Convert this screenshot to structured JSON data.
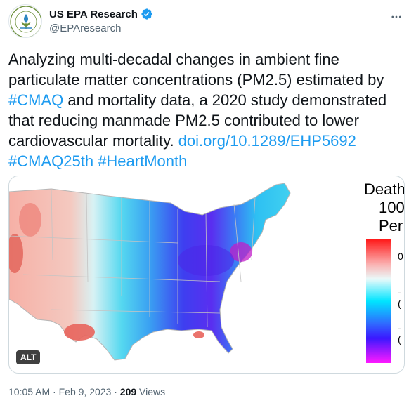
{
  "author": {
    "display_name": "US EPA Research",
    "handle": "@EPAresearch",
    "verified": true,
    "avatar_icon": "epa-seal-icon"
  },
  "tweet": {
    "text_part1": "Analyzing multi-decadal changes in ambient fine particulate matter concentrations (PM2.5) estimated by ",
    "hashtag_cmaq": "#CMAQ",
    "text_part2": " and mortality data, a 2020 study demonstrated that reducing manmade PM2.5 contributed to lower cardiovascular mortality.",
    "link_doi": "doi.org/10.1289/EHP5692",
    "hashtag_cmaq25": "#CMAQ25th",
    "hashtag_heart": "#HeartMonth"
  },
  "media": {
    "alt_badge": "ALT",
    "legend_title_lines": [
      "Death",
      "100",
      "Per"
    ],
    "legend_ticks": [
      "0",
      "-(",
      "-("
    ],
    "colors": {
      "high": "#ff2020",
      "mid": "#e8f8f8",
      "low_cyan": "#00e0ff",
      "low_blue": "#3030ff",
      "lowest": "#ff20ff"
    }
  },
  "meta": {
    "time": "10:05 AM",
    "date": "Feb 9, 2023",
    "views_count": "209",
    "views_label": "Views",
    "separator": "·"
  },
  "colors": {
    "link": "#1d9bf0",
    "verified": "#1d9bf0",
    "text": "#0f1419",
    "muted": "#536471"
  }
}
